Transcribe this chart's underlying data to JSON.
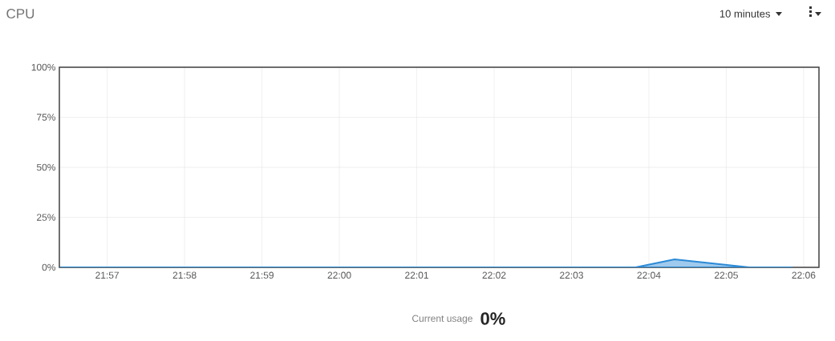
{
  "chart_data": {
    "type": "area",
    "title": "CPU",
    "x": [
      21.94,
      22.0638,
      22.0722,
      22.0883,
      22.0975
    ],
    "series": [
      {
        "color": "#2b8ad6",
        "values": [
          0,
          0,
          4,
          0,
          0
        ]
      }
    ],
    "xlim": [
      21.9397,
      22.1033
    ],
    "xticks": [
      {
        "value": 21.95,
        "label": "21:57"
      },
      {
        "value": 21.966667,
        "label": "21:58"
      },
      {
        "value": 21.983333,
        "label": "21:59"
      },
      {
        "value": 22.0,
        "label": "22:00"
      },
      {
        "value": 22.016667,
        "label": "22:01"
      },
      {
        "value": 22.033333,
        "label": "22:02"
      },
      {
        "value": 22.05,
        "label": "22:03"
      },
      {
        "value": 22.066667,
        "label": "22:04"
      },
      {
        "value": 22.083333,
        "label": "22:05"
      },
      {
        "value": 22.1,
        "label": "22:06"
      }
    ],
    "ylim": [
      0,
      100
    ],
    "yticks": [
      {
        "value": 0,
        "label": "0%"
      },
      {
        "value": 25,
        "label": "25%"
      },
      {
        "value": 50,
        "label": "50%"
      },
      {
        "value": 75,
        "label": "75%"
      },
      {
        "value": 100,
        "label": "100%"
      }
    ],
    "grid": true,
    "annotations": [
      "10 minutes",
      "Current usage",
      "0%"
    ]
  }
}
